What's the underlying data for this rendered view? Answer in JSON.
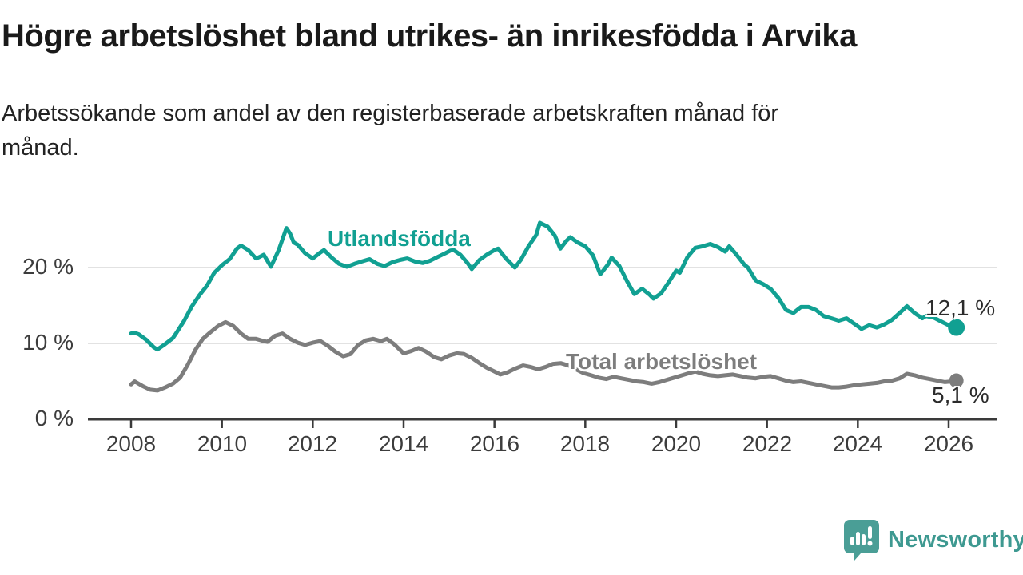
{
  "header": {
    "title": "Högre arbetslöshet bland utrikes- än inrikesfödda i Arvika",
    "subtitle_lines": [
      "Arbetssökande som andel av den registerbaserade arbetskraften månad för",
      "månad."
    ]
  },
  "footer": {
    "brand": "Newsworthy"
  },
  "colors": {
    "foreign_born_line": "#11a092",
    "total_line": "#7d7d7d",
    "grid": "#d9d9d9",
    "axis": "#3a3a3a",
    "tick_text": "#3c3c3c",
    "value_text": "#2b2b2b",
    "brand_teal": "#4a9e96"
  },
  "chart_data": {
    "type": "line",
    "title": "Högre arbetslöshet bland utrikes- än inrikesfödda i Arvika",
    "subtitle": "Arbetssökande som andel av den registerbaserade arbetskraften månad för månad.",
    "unit": "%",
    "grid": "horizontal",
    "legend_position": "inline-labels",
    "xlim": [
      2007.05,
      2027.07
    ],
    "ylim": [
      0,
      27
    ],
    "x_tick_years": [
      2008,
      2010,
      2012,
      2014,
      2016,
      2018,
      2020,
      2022,
      2024,
      2026
    ],
    "x_tick_labels": [
      "2008",
      "2010",
      "2012",
      "2014",
      "2016",
      "2018",
      "2020",
      "2022",
      "2024",
      "2026"
    ],
    "y_tick_values": [
      20,
      10,
      0
    ],
    "y_tick_labels": [
      "20 %",
      "10 %",
      "0 %"
    ],
    "gridline_values": [
      20,
      10
    ],
    "series": [
      {
        "name": "Utlandsfödda",
        "label": "Utlandsfödda",
        "color": "#11a092",
        "end_label": "12,1 %",
        "last_value": 12.1,
        "points": [
          [
            2008.0,
            11.3
          ],
          [
            2008.08,
            11.4
          ],
          [
            2008.17,
            11.2
          ],
          [
            2008.33,
            10.5
          ],
          [
            2008.5,
            9.5
          ],
          [
            2008.58,
            9.2
          ],
          [
            2008.75,
            9.9
          ],
          [
            2008.92,
            10.7
          ],
          [
            2009.0,
            11.4
          ],
          [
            2009.17,
            13.0
          ],
          [
            2009.33,
            14.8
          ],
          [
            2009.5,
            16.3
          ],
          [
            2009.67,
            17.6
          ],
          [
            2009.83,
            19.3
          ],
          [
            2010.0,
            20.3
          ],
          [
            2010.17,
            21.1
          ],
          [
            2010.33,
            22.5
          ],
          [
            2010.42,
            22.9
          ],
          [
            2010.58,
            22.3
          ],
          [
            2010.75,
            21.2
          ],
          [
            2010.83,
            21.4
          ],
          [
            2010.92,
            21.7
          ],
          [
            2011.08,
            20.1
          ],
          [
            2011.25,
            22.3
          ],
          [
            2011.42,
            25.2
          ],
          [
            2011.5,
            24.5
          ],
          [
            2011.58,
            23.3
          ],
          [
            2011.67,
            23.0
          ],
          [
            2011.83,
            21.9
          ],
          [
            2012.0,
            21.2
          ],
          [
            2012.17,
            22.0
          ],
          [
            2012.25,
            22.3
          ],
          [
            2012.42,
            21.3
          ],
          [
            2012.58,
            20.5
          ],
          [
            2012.75,
            20.1
          ],
          [
            2012.92,
            20.5
          ],
          [
            2013.08,
            20.8
          ],
          [
            2013.25,
            21.1
          ],
          [
            2013.42,
            20.5
          ],
          [
            2013.58,
            20.2
          ],
          [
            2013.75,
            20.7
          ],
          [
            2013.92,
            21.0
          ],
          [
            2014.08,
            21.2
          ],
          [
            2014.25,
            20.8
          ],
          [
            2014.42,
            20.6
          ],
          [
            2014.58,
            20.9
          ],
          [
            2014.75,
            21.4
          ],
          [
            2014.92,
            21.9
          ],
          [
            2015.08,
            22.4
          ],
          [
            2015.25,
            21.7
          ],
          [
            2015.42,
            20.5
          ],
          [
            2015.5,
            19.8
          ],
          [
            2015.67,
            21.0
          ],
          [
            2015.83,
            21.7
          ],
          [
            2016.0,
            22.3
          ],
          [
            2016.08,
            22.5
          ],
          [
            2016.25,
            21.2
          ],
          [
            2016.45,
            20.0
          ],
          [
            2016.58,
            21.0
          ],
          [
            2016.75,
            22.8
          ],
          [
            2016.92,
            24.3
          ],
          [
            2017.0,
            25.9
          ],
          [
            2017.17,
            25.4
          ],
          [
            2017.33,
            24.2
          ],
          [
            2017.45,
            22.5
          ],
          [
            2017.58,
            23.5
          ],
          [
            2017.67,
            24.0
          ],
          [
            2017.83,
            23.3
          ],
          [
            2018.0,
            22.8
          ],
          [
            2018.17,
            21.6
          ],
          [
            2018.33,
            19.1
          ],
          [
            2018.5,
            20.4
          ],
          [
            2018.58,
            21.3
          ],
          [
            2018.75,
            20.2
          ],
          [
            2018.92,
            18.2
          ],
          [
            2019.08,
            16.5
          ],
          [
            2019.25,
            17.2
          ],
          [
            2019.42,
            16.4
          ],
          [
            2019.5,
            15.9
          ],
          [
            2019.67,
            16.6
          ],
          [
            2019.83,
            18.0
          ],
          [
            2020.0,
            19.6
          ],
          [
            2020.08,
            19.3
          ],
          [
            2020.25,
            21.4
          ],
          [
            2020.42,
            22.6
          ],
          [
            2020.58,
            22.8
          ],
          [
            2020.75,
            23.1
          ],
          [
            2020.92,
            22.7
          ],
          [
            2021.08,
            22.1
          ],
          [
            2021.17,
            22.8
          ],
          [
            2021.33,
            21.7
          ],
          [
            2021.5,
            20.4
          ],
          [
            2021.58,
            20.0
          ],
          [
            2021.75,
            18.3
          ],
          [
            2021.92,
            17.8
          ],
          [
            2022.08,
            17.2
          ],
          [
            2022.25,
            16.0
          ],
          [
            2022.42,
            14.4
          ],
          [
            2022.58,
            14.0
          ],
          [
            2022.75,
            14.8
          ],
          [
            2022.92,
            14.8
          ],
          [
            2023.08,
            14.4
          ],
          [
            2023.25,
            13.6
          ],
          [
            2023.42,
            13.3
          ],
          [
            2023.58,
            13.0
          ],
          [
            2023.75,
            13.3
          ],
          [
            2023.92,
            12.6
          ],
          [
            2024.08,
            11.9
          ],
          [
            2024.25,
            12.4
          ],
          [
            2024.42,
            12.1
          ],
          [
            2024.58,
            12.5
          ],
          [
            2024.75,
            13.1
          ],
          [
            2024.92,
            14.0
          ],
          [
            2025.08,
            14.9
          ],
          [
            2025.25,
            14.0
          ],
          [
            2025.42,
            13.3
          ],
          [
            2025.5,
            13.6
          ],
          [
            2025.67,
            13.4
          ],
          [
            2025.83,
            12.9
          ],
          [
            2026.0,
            12.4
          ],
          [
            2026.17,
            12.1
          ]
        ]
      },
      {
        "name": "Total arbetslöshet",
        "label": "Total arbetslöshet",
        "color": "#7d7d7d",
        "end_label": "5,1 %",
        "last_value": 5.1,
        "points": [
          [
            2008.0,
            4.6
          ],
          [
            2008.08,
            5.0
          ],
          [
            2008.25,
            4.4
          ],
          [
            2008.42,
            3.9
          ],
          [
            2008.58,
            3.8
          ],
          [
            2008.75,
            4.2
          ],
          [
            2008.92,
            4.7
          ],
          [
            2009.08,
            5.5
          ],
          [
            2009.25,
            7.2
          ],
          [
            2009.42,
            9.2
          ],
          [
            2009.58,
            10.6
          ],
          [
            2009.75,
            11.5
          ],
          [
            2009.92,
            12.3
          ],
          [
            2010.08,
            12.8
          ],
          [
            2010.25,
            12.3
          ],
          [
            2010.42,
            11.3
          ],
          [
            2010.58,
            10.6
          ],
          [
            2010.75,
            10.6
          ],
          [
            2010.92,
            10.3
          ],
          [
            2011.0,
            10.2
          ],
          [
            2011.17,
            11.0
          ],
          [
            2011.33,
            11.3
          ],
          [
            2011.5,
            10.6
          ],
          [
            2011.67,
            10.1
          ],
          [
            2011.83,
            9.8
          ],
          [
            2012.0,
            10.1
          ],
          [
            2012.17,
            10.3
          ],
          [
            2012.33,
            9.7
          ],
          [
            2012.5,
            8.9
          ],
          [
            2012.67,
            8.3
          ],
          [
            2012.83,
            8.6
          ],
          [
            2013.0,
            9.8
          ],
          [
            2013.17,
            10.4
          ],
          [
            2013.33,
            10.6
          ],
          [
            2013.5,
            10.3
          ],
          [
            2013.63,
            10.6
          ],
          [
            2013.79,
            9.9
          ],
          [
            2014.0,
            8.7
          ],
          [
            2014.17,
            9.0
          ],
          [
            2014.33,
            9.4
          ],
          [
            2014.5,
            8.9
          ],
          [
            2014.67,
            8.2
          ],
          [
            2014.83,
            7.9
          ],
          [
            2015.0,
            8.4
          ],
          [
            2015.17,
            8.7
          ],
          [
            2015.33,
            8.6
          ],
          [
            2015.5,
            8.1
          ],
          [
            2015.67,
            7.4
          ],
          [
            2015.83,
            6.8
          ],
          [
            2016.0,
            6.3
          ],
          [
            2016.13,
            5.9
          ],
          [
            2016.29,
            6.2
          ],
          [
            2016.46,
            6.7
          ],
          [
            2016.63,
            7.1
          ],
          [
            2016.79,
            6.9
          ],
          [
            2016.96,
            6.6
          ],
          [
            2017.13,
            6.9
          ],
          [
            2017.29,
            7.3
          ],
          [
            2017.46,
            7.4
          ],
          [
            2017.63,
            7.1
          ],
          [
            2017.79,
            6.6
          ],
          [
            2017.96,
            6.1
          ],
          [
            2018.13,
            5.8
          ],
          [
            2018.29,
            5.5
          ],
          [
            2018.46,
            5.3
          ],
          [
            2018.63,
            5.6
          ],
          [
            2018.79,
            5.4
          ],
          [
            2018.96,
            5.2
          ],
          [
            2019.13,
            5.0
          ],
          [
            2019.29,
            4.9
          ],
          [
            2019.46,
            4.7
          ],
          [
            2019.63,
            4.9
          ],
          [
            2019.79,
            5.2
          ],
          [
            2019.96,
            5.5
          ],
          [
            2020.13,
            5.8
          ],
          [
            2020.29,
            6.1
          ],
          [
            2020.42,
            6.3
          ],
          [
            2020.58,
            6.0
          ],
          [
            2020.75,
            5.8
          ],
          [
            2020.92,
            5.7
          ],
          [
            2021.08,
            5.8
          ],
          [
            2021.25,
            5.9
          ],
          [
            2021.42,
            5.7
          ],
          [
            2021.58,
            5.5
          ],
          [
            2021.75,
            5.4
          ],
          [
            2021.92,
            5.6
          ],
          [
            2022.08,
            5.7
          ],
          [
            2022.25,
            5.4
          ],
          [
            2022.42,
            5.1
          ],
          [
            2022.58,
            4.9
          ],
          [
            2022.75,
            5.0
          ],
          [
            2022.92,
            4.8
          ],
          [
            2023.08,
            4.6
          ],
          [
            2023.25,
            4.4
          ],
          [
            2023.42,
            4.2
          ],
          [
            2023.58,
            4.2
          ],
          [
            2023.75,
            4.3
          ],
          [
            2023.92,
            4.5
          ],
          [
            2024.08,
            4.6
          ],
          [
            2024.25,
            4.7
          ],
          [
            2024.42,
            4.8
          ],
          [
            2024.58,
            5.0
          ],
          [
            2024.75,
            5.1
          ],
          [
            2024.92,
            5.4
          ],
          [
            2025.08,
            6.0
          ],
          [
            2025.25,
            5.8
          ],
          [
            2025.42,
            5.5
          ],
          [
            2025.58,
            5.3
          ],
          [
            2025.75,
            5.1
          ],
          [
            2025.92,
            4.9
          ],
          [
            2026.08,
            5.0
          ],
          [
            2026.17,
            5.1
          ]
        ]
      }
    ]
  }
}
